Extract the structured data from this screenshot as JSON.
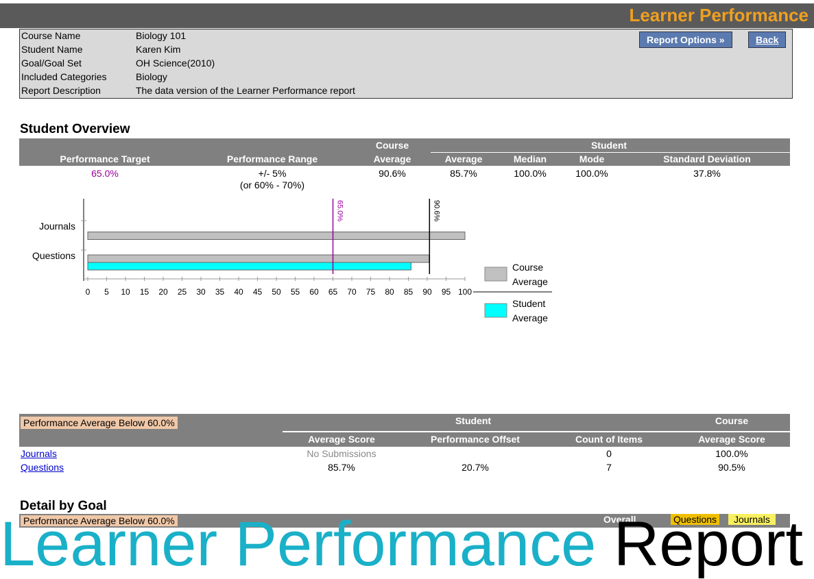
{
  "header": {
    "title": "Learner Performance"
  },
  "buttons": {
    "report_options": "Report Options",
    "back": "Back"
  },
  "info": {
    "rows": [
      [
        "Course Name",
        "Biology 101"
      ],
      [
        "Student Name",
        "Karen Kim"
      ],
      [
        "Goal/Goal Set",
        "OH Science(2010)"
      ],
      [
        "Included Categories",
        "Biology"
      ],
      [
        "Report Description",
        "The data version of the Learner Performance report"
      ]
    ]
  },
  "overview": {
    "title": "Student Overview",
    "group_course": "Course",
    "group_student": "Student",
    "columns": [
      "Performance Target",
      "Performance Range",
      "Average",
      "Average",
      "Median",
      "Mode",
      "Standard Deviation"
    ],
    "values": [
      "65.0%",
      "+/- 5%",
      "90.6%",
      "85.7%",
      "100.0%",
      "100.0%",
      "37.8%"
    ],
    "range_note": "(or 60% - 70%)"
  },
  "chart": {
    "type": "bar",
    "categories": [
      "Journals",
      "Questions"
    ],
    "series": [
      {
        "name": "Course Average",
        "color": "#c0c0c0",
        "values": [
          100,
          90.5
        ]
      },
      {
        "name": "Student Average",
        "color": "#00ffff",
        "values": [
          null,
          85.7
        ]
      }
    ],
    "xlim": [
      0,
      100
    ],
    "xticks": [
      0,
      5,
      10,
      15,
      20,
      25,
      30,
      35,
      40,
      45,
      50,
      55,
      60,
      65,
      70,
      75,
      80,
      85,
      90,
      95,
      100
    ],
    "reference_lines": [
      {
        "value": 65,
        "label": "65.0%",
        "color": "#990099"
      },
      {
        "value": 90.6,
        "label": "90.6%",
        "color": "#000000"
      }
    ]
  },
  "performance": {
    "flag": "Performance Average Below 60.0%",
    "group_student": "Student",
    "group_course": "Course",
    "columns": [
      "Average Score",
      "Performance Offset",
      "Count of Items",
      "Average Score"
    ],
    "rows": [
      [
        "Journals",
        "No Submissions",
        null,
        0,
        "100.0%"
      ],
      [
        "Questions",
        "85.7%",
        "20.7%",
        7,
        "90.5%"
      ]
    ]
  },
  "detail": {
    "title": "Detail by Goal",
    "flag": "Performance Average Below 60.0%",
    "overall": "Overall",
    "tabs": [
      "Questions",
      "Journals"
    ]
  },
  "banner": {
    "colored": "Learner Performance",
    "plain": "Report"
  }
}
